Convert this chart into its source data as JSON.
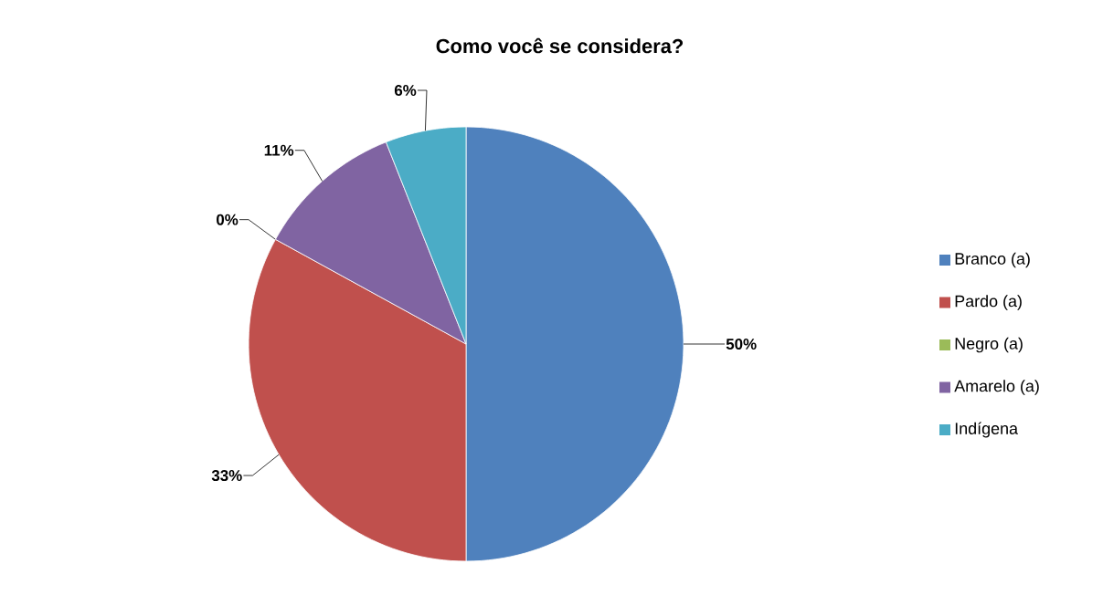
{
  "chart_data": {
    "type": "pie",
    "title": "Como você se considera?",
    "categories": [
      "Branco (a)",
      "Pardo (a)",
      "Negro (a)",
      "Amarelo (a)",
      "Indígena"
    ],
    "values": [
      50,
      33,
      0,
      11,
      6
    ],
    "colors": [
      "#4f81bd",
      "#c0504d",
      "#9bbb59",
      "#8064a2",
      "#4bacc6"
    ],
    "value_labels": [
      "50%",
      "33%",
      "0%",
      "11%",
      "6%"
    ],
    "legend": "right"
  }
}
